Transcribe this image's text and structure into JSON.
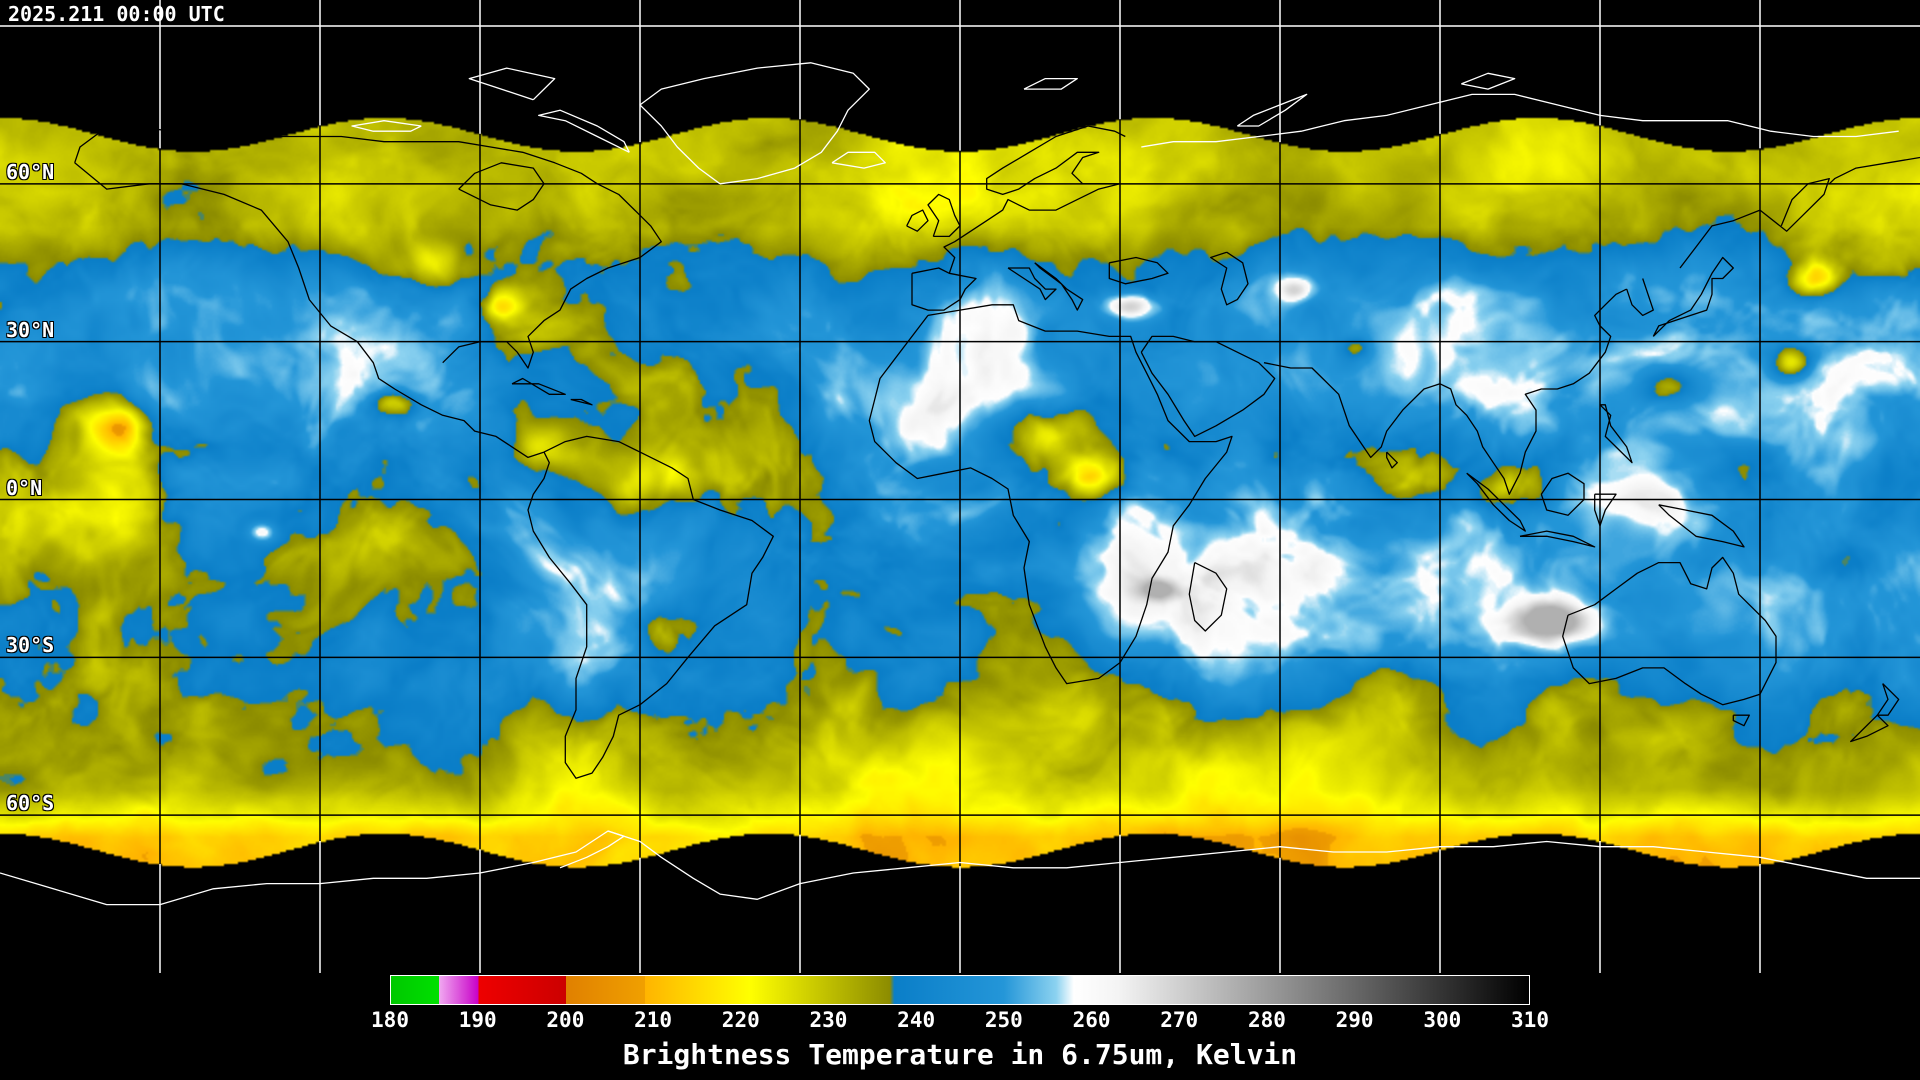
{
  "header": {
    "timestamp": "2025.211 00:00 UTC"
  },
  "map": {
    "lat_labels": [
      {
        "text": "60°N",
        "lat": 60
      },
      {
        "text": "30°N",
        "lat": 30
      },
      {
        "text": "0°N",
        "lat": 0
      },
      {
        "text": "30°S",
        "lat": -30
      },
      {
        "text": "60°S",
        "lat": -60
      }
    ],
    "grid": {
      "lon_step_deg": 30,
      "lat_step_deg": 30
    },
    "colors": {
      "background": "#000000",
      "grid_on_data": "#000000",
      "grid_on_nodata": "#ffffff",
      "coastline_on_data": "#000000",
      "coastline_on_nodata": "#ffffff"
    }
  },
  "legend": {
    "min": 180,
    "max": 310,
    "ticks": [
      180,
      190,
      200,
      210,
      220,
      230,
      240,
      250,
      260,
      270,
      280,
      290,
      300,
      310
    ],
    "caption": "Brightness Temperature in 6.75um, Kelvin",
    "stops": [
      {
        "v": 180,
        "c": "#00c800"
      },
      {
        "v": 185.5,
        "c": "#00e000"
      },
      {
        "v": 185.5,
        "c": "#f0a8f0"
      },
      {
        "v": 190,
        "c": "#c800c8"
      },
      {
        "v": 190,
        "c": "#ee0000"
      },
      {
        "v": 200,
        "c": "#cc0000"
      },
      {
        "v": 200,
        "c": "#e08000"
      },
      {
        "v": 209,
        "c": "#f0a000"
      },
      {
        "v": 209,
        "c": "#ffb400"
      },
      {
        "v": 216,
        "c": "#ffe000"
      },
      {
        "v": 221,
        "c": "#ffff00"
      },
      {
        "v": 237,
        "c": "#8c8c00"
      },
      {
        "v": 237.5,
        "c": "#0a7ec8"
      },
      {
        "v": 250,
        "c": "#2496d8"
      },
      {
        "v": 256,
        "c": "#8cd2f0"
      },
      {
        "v": 258,
        "c": "#ffffff"
      },
      {
        "v": 263,
        "c": "#f4f4f4"
      },
      {
        "v": 310,
        "c": "#000000"
      }
    ]
  }
}
